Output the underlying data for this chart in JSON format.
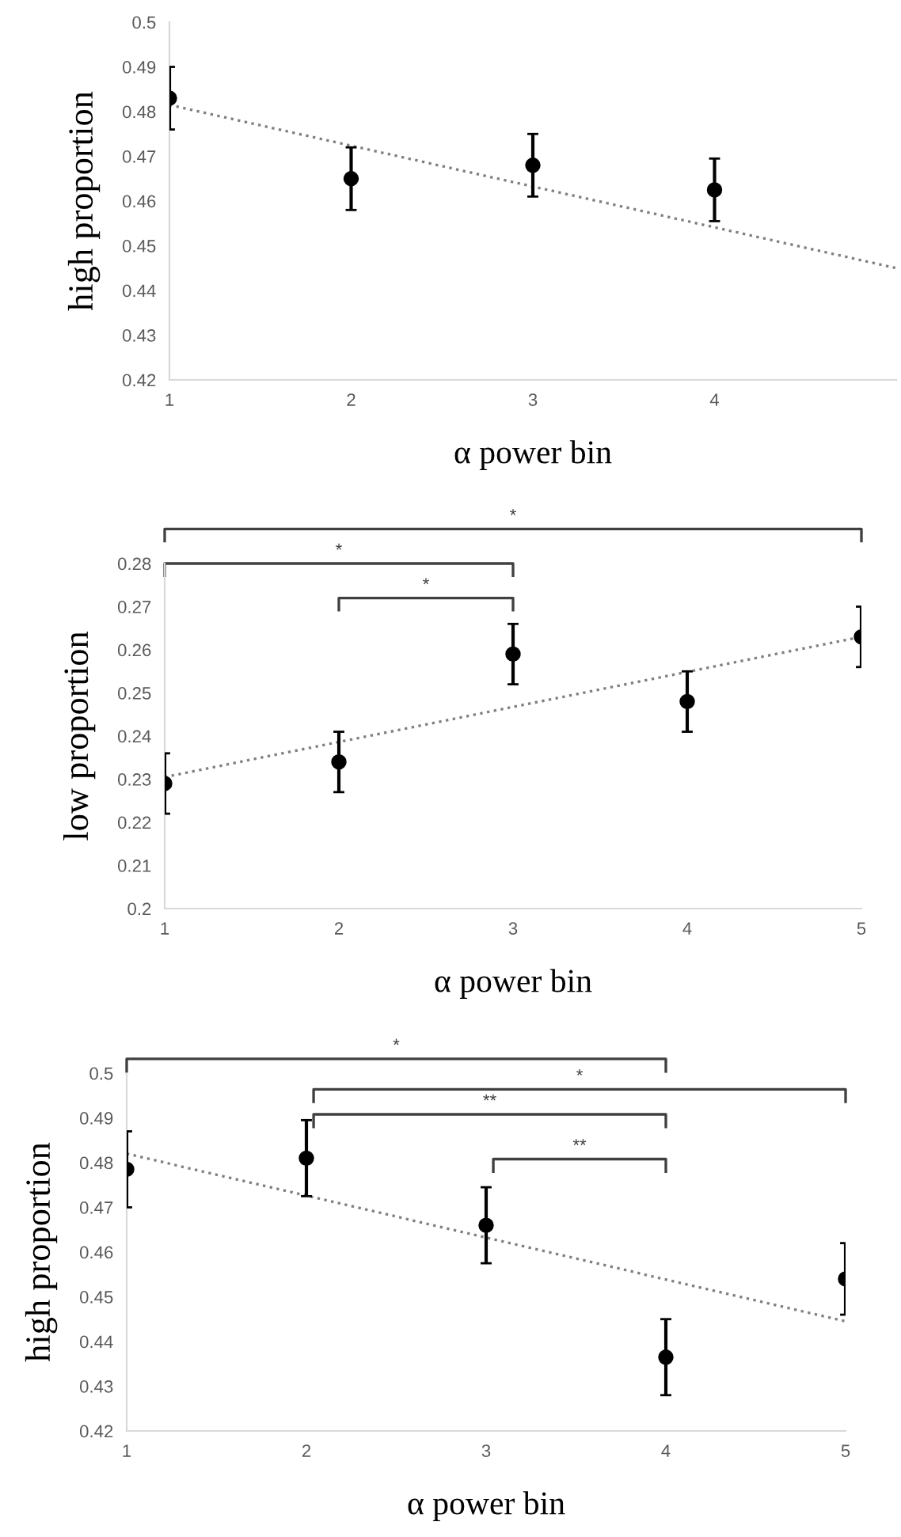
{
  "chart_data": [
    {
      "type": "scatter",
      "xlabel": "α power bin",
      "ylabel": "high proportion",
      "xlim": [
        1,
        5
      ],
      "xticks": [
        1,
        2,
        3,
        4
      ],
      "ylim": [
        0.42,
        0.5
      ],
      "yticks": [
        0.42,
        0.43,
        0.44,
        0.45,
        0.46,
        0.47,
        0.48,
        0.49,
        0.5
      ],
      "grid": false,
      "marker": "circle",
      "series": [
        {
          "color": "#000000",
          "x": [
            1,
            2,
            3,
            4
          ],
          "values": [
            0.483,
            0.465,
            0.468,
            0.4625
          ],
          "errors": [
            0.007,
            0.007,
            0.007,
            0.007
          ]
        },
        {
          "type": "line",
          "color": "#808080",
          "line_style": "dotted",
          "marker": "none",
          "x": [
            1,
            5
          ],
          "values": [
            0.4815,
            0.445
          ]
        }
      ]
    },
    {
      "type": "scatter",
      "xlabel": "α power bin",
      "ylabel": "low proportion",
      "xlim": [
        1,
        5
      ],
      "xticks": [
        1,
        2,
        3,
        4,
        5
      ],
      "ylim": [
        0.2,
        0.28
      ],
      "yticks": [
        0.2,
        0.21,
        0.22,
        0.23,
        0.24,
        0.25,
        0.26,
        0.27,
        0.28
      ],
      "grid": false,
      "marker": "circle",
      "series": [
        {
          "color": "#000000",
          "x": [
            1,
            2,
            3,
            4,
            5
          ],
          "values": [
            0.229,
            0.234,
            0.259,
            0.248,
            0.263
          ],
          "errors": [
            0.007,
            0.007,
            0.007,
            0.007,
            0.007
          ]
        },
        {
          "type": "line",
          "color": "#808080",
          "line_style": "dotted",
          "marker": "none",
          "x": [
            1,
            5
          ],
          "values": [
            0.2305,
            0.263
          ]
        }
      ],
      "annotations": [
        "*",
        "*",
        "*"
      ]
    },
    {
      "type": "scatter",
      "xlabel": "α power bin",
      "ylabel": "high proportion",
      "xlim": [
        1,
        5
      ],
      "xticks": [
        1,
        2,
        3,
        4,
        5
      ],
      "ylim": [
        0.42,
        0.5
      ],
      "yticks": [
        0.42,
        0.43,
        0.44,
        0.45,
        0.46,
        0.47,
        0.48,
        0.49,
        0.5
      ],
      "grid": false,
      "marker": "circle",
      "series": [
        {
          "color": "#000000",
          "x": [
            1,
            2,
            3,
            4,
            5
          ],
          "values": [
            0.4785,
            0.481,
            0.466,
            0.4365,
            0.454
          ],
          "errors": [
            0.0085,
            0.0085,
            0.0085,
            0.0085,
            0.008
          ]
        },
        {
          "type": "line",
          "color": "#808080",
          "line_style": "dotted",
          "marker": "none",
          "x": [
            1,
            5
          ],
          "values": [
            0.482,
            0.4445
          ]
        }
      ],
      "annotations": [
        "*",
        "*",
        "**",
        "**"
      ]
    }
  ]
}
